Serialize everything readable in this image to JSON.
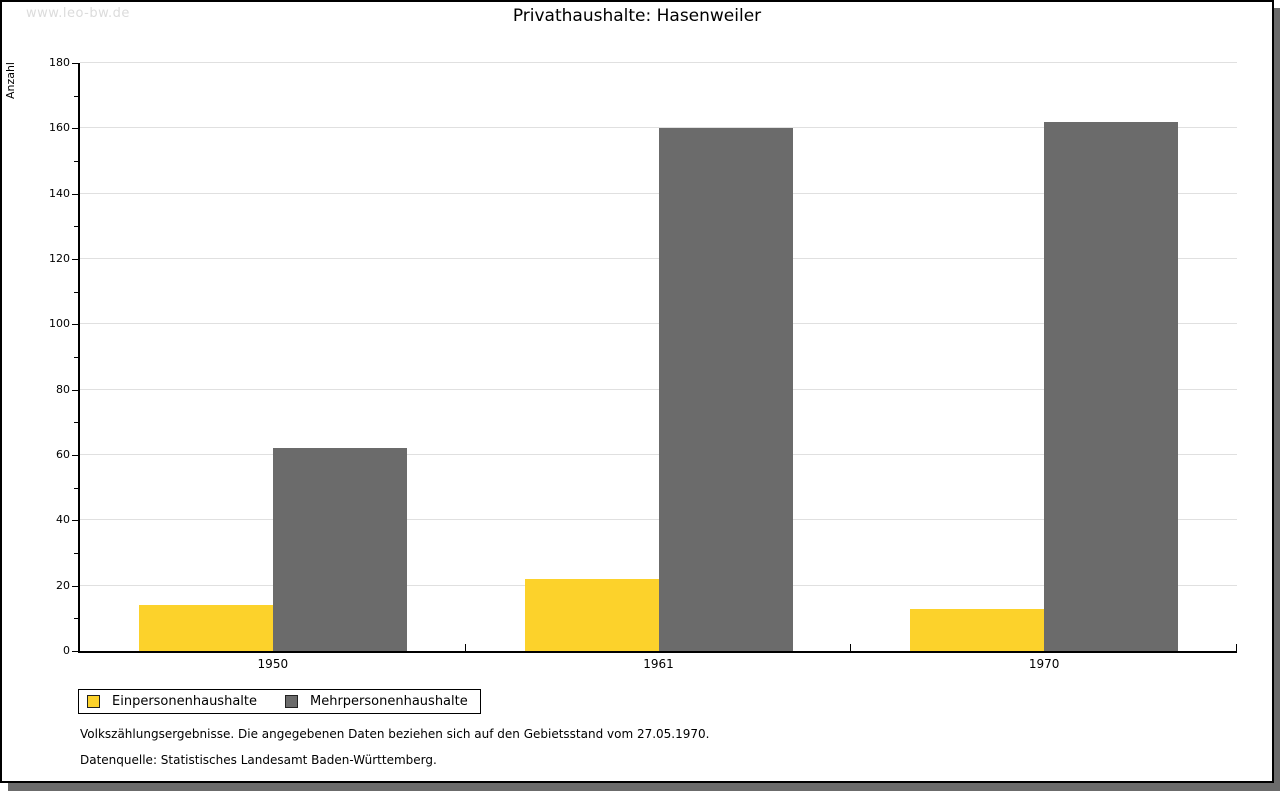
{
  "watermark": "www.leo-bw.de",
  "header": {
    "title": "Privathaushalte: Hasenweiler"
  },
  "footer": {
    "line1": "Volkszählungsergebnisse. Die angegebenen Daten beziehen sich auf den Gebietsstand vom 27.05.1970.",
    "line2": "Datenquelle: Statistisches Landesamt Baden-Württemberg."
  },
  "colors": {
    "series_einpersonen": "#fcd22b",
    "series_mehrpersonen": "#6b6b6b",
    "frame_shadow": "#6b6b6b",
    "gridline": "#e0e0e0",
    "watermark_text": "#dcdcdc",
    "axis": "#000000"
  },
  "chart_data": {
    "type": "bar",
    "title": "Privathaushalte: Hasenweiler",
    "xlabel": "",
    "ylabel": "Anzahl",
    "categories": [
      "1950",
      "1961",
      "1970"
    ],
    "series": [
      {
        "name": "Einpersonenhaushalte",
        "color": "#fcd22b",
        "values": [
          14,
          22,
          13
        ]
      },
      {
        "name": "Mehrpersonenhaushalte",
        "color": "#6b6b6b",
        "values": [
          62,
          160,
          162
        ]
      }
    ],
    "ylim": [
      0,
      180
    ],
    "ytick_step": 20,
    "ytick_minor_step": 10,
    "grid": "horizontal-major",
    "grid_color": "#e0e0e0",
    "legend_position": "bottom-left",
    "bar_orientation": "vertical"
  }
}
